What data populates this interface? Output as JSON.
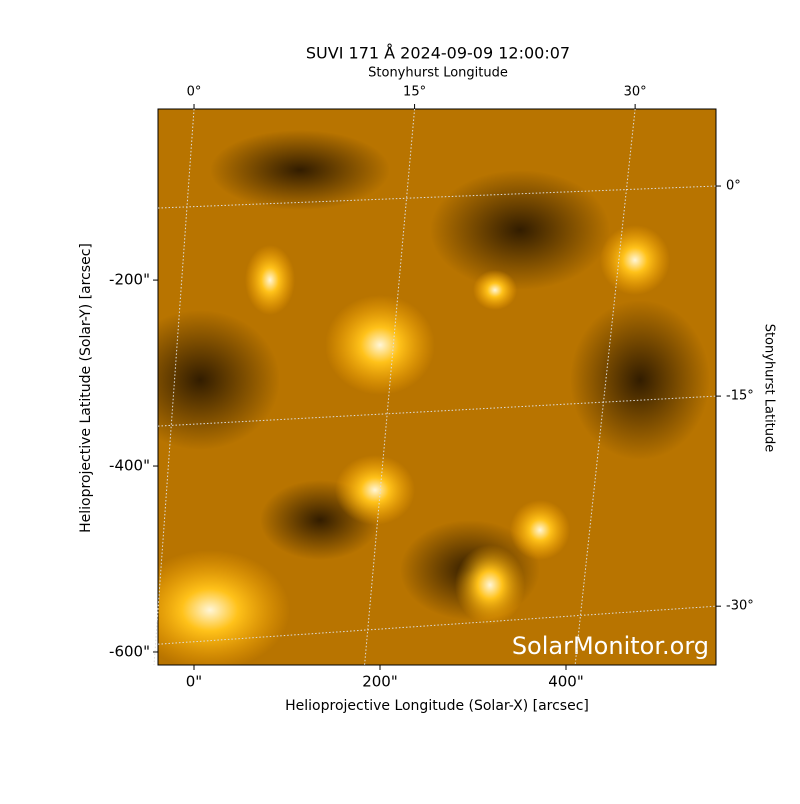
{
  "chart_data": {
    "type": "image",
    "title": "SUVI 171 Å 2024-09-09 12:00:07",
    "xlabel": "Helioprojective Longitude (Solar-X) [arcsec]",
    "ylabel": "Helioprojective Latitude (Solar-Y) [arcsec]",
    "x2label": "Stonyhurst Longitude",
    "y2label": "Stonyhurst Latitude",
    "watermark": "SolarMonitor.org",
    "xlim": [
      -38.7,
      561.3
    ],
    "ylim": [
      -614,
      -16
    ],
    "xticks": [
      {
        "value": 0,
        "label": "0\""
      },
      {
        "value": 200,
        "label": "200\""
      },
      {
        "value": 400,
        "label": "400\""
      }
    ],
    "yticks": [
      {
        "value": -200,
        "label": "-200\""
      },
      {
        "value": -400,
        "label": "-400\""
      },
      {
        "value": -600,
        "label": "-600\""
      }
    ],
    "x2lim": [
      -2.45,
      35.5
    ],
    "x2ticks": [
      {
        "value": 0,
        "label": "0°"
      },
      {
        "value": 15,
        "label": "15°"
      },
      {
        "value": 30,
        "label": "30°"
      }
    ],
    "y2lim": [
      5.5,
      -34.2
    ],
    "y2ticks": [
      {
        "value": 0,
        "label": "0°"
      },
      {
        "value": -15,
        "label": "-15°"
      },
      {
        "value": -30,
        "label": "-30°"
      }
    ],
    "grid": true
  }
}
